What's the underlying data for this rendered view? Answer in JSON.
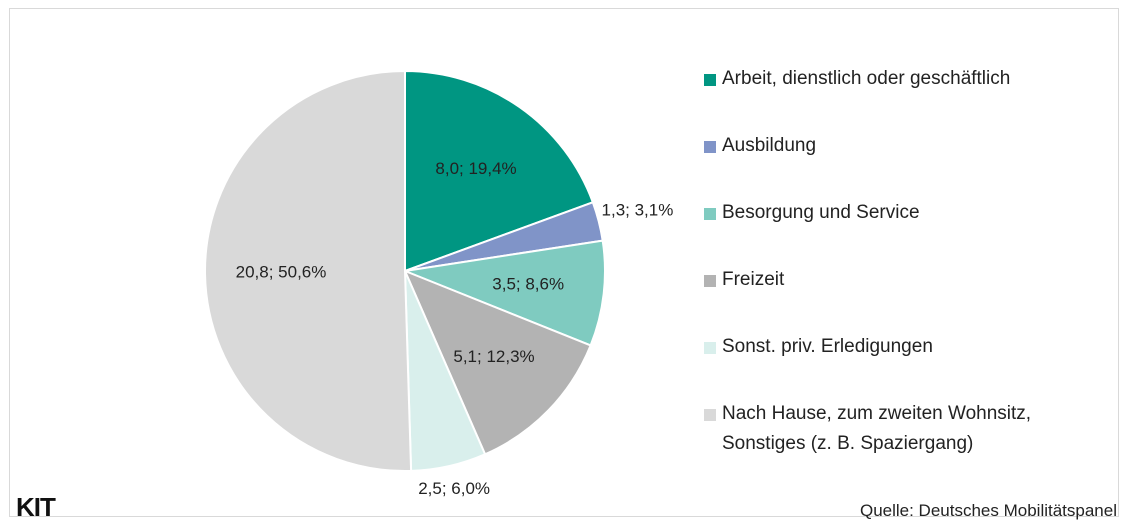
{
  "chart_data": {
    "type": "pie",
    "categories": [
      "Arbeit, dienstlich oder geschäftlich",
      "Ausbildung",
      "Besorgung und Service",
      "Freizeit",
      "Sonst. priv. Erledigungen",
      "Nach Hause, zum zweiten Wohnsitz, Sonstiges (z. B. Spaziergang)"
    ],
    "values": [
      8.0,
      1.3,
      3.5,
      5.1,
      2.5,
      20.8
    ],
    "value_labels": [
      "8,0; 19,4%",
      "1,3; 3,1%",
      "3,5; 8,6%",
      "5,1; 12,3%",
      "2,5; 6,0%",
      "20,8; 50,6%"
    ],
    "colors": [
      "#009682",
      "#8094c8",
      "#7fcbc0",
      "#b3b3b3",
      "#d9efec",
      "#d9d9d9"
    ],
    "legend": "right",
    "source": "Quelle: Deutsches Mobilitätspanel",
    "logo": "KIT"
  }
}
